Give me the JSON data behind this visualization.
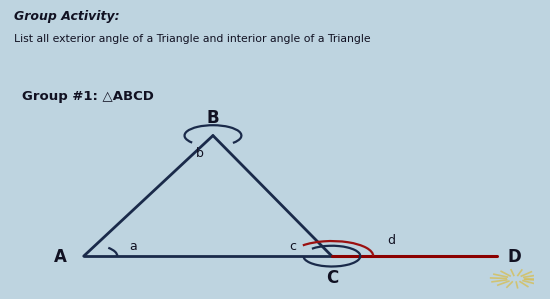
{
  "title_bold": "Group Activity:",
  "title_sub": "List all exterior angle of a Triangle and interior angle of a Triangle",
  "group_label": "Group #1: △ABCD",
  "bg_color": "#bed4e0",
  "header_bg": "#ccdde8",
  "triangle_color": "#1a2a4a",
  "line_color": "#8b0000",
  "sep_color": "#8aaabb",
  "A": [
    0.13,
    0.18
  ],
  "B": [
    0.38,
    0.82
  ],
  "C": [
    0.61,
    0.18
  ],
  "D": [
    0.93,
    0.18
  ],
  "label_A": "A",
  "label_B": "B",
  "label_C": "C",
  "label_D": "D",
  "angle_a": "a",
  "angle_b": "b",
  "angle_c": "c",
  "angle_d": "d"
}
